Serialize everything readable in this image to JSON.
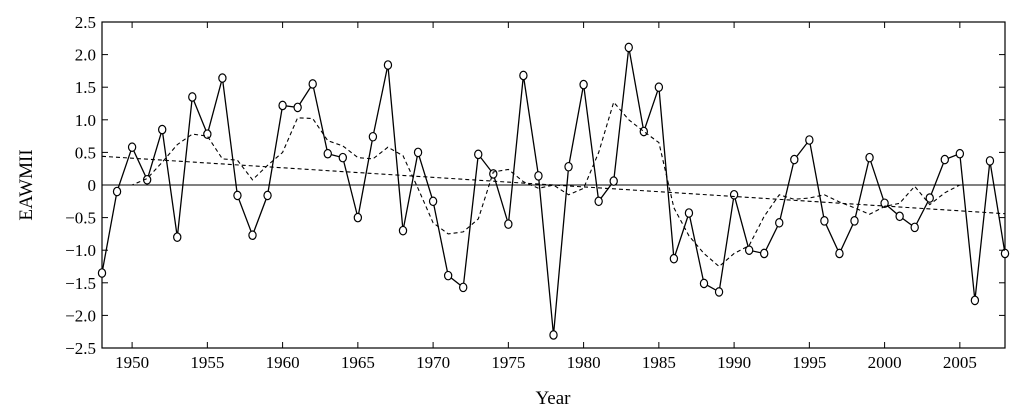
{
  "chart_data": {
    "type": "line",
    "title": "",
    "xlabel": "Year",
    "ylabel": "EAWMII",
    "xlim": [
      1948,
      2008
    ],
    "ylim": [
      -2.5,
      2.5
    ],
    "x_ticks": [
      1950,
      1955,
      1960,
      1965,
      1970,
      1975,
      1980,
      1985,
      1990,
      1995,
      2000,
      2005
    ],
    "x_tick_labels": [
      "1950",
      "1955",
      "1960",
      "1965",
      "1970",
      "1975",
      "1980",
      "1985",
      "1990",
      "1995",
      "2000",
      "2005"
    ],
    "y_ticks": [
      2.5,
      2.0,
      1.5,
      1.0,
      0.5,
      0,
      -0.5,
      -1.0,
      -1.5,
      -2.0,
      -2.5
    ],
    "y_tick_labels": [
      "2.5",
      "2.0",
      "1.5",
      "1.0",
      "0.5",
      "0",
      "−0.5",
      "−1.0",
      "−1.5",
      "−2.0",
      "−2.5"
    ],
    "zero_line": true,
    "grid": false,
    "legend": "none",
    "colors": {
      "line": "#000000",
      "background": "#ffffff"
    },
    "series": [
      {
        "style": "solid-with-open-circles",
        "x": [
          1948,
          1949,
          1950,
          1951,
          1952,
          1953,
          1954,
          1955,
          1956,
          1957,
          1958,
          1959,
          1960,
          1961,
          1962,
          1963,
          1964,
          1965,
          1966,
          1967,
          1968,
          1969,
          1970,
          1971,
          1972,
          1973,
          1974,
          1975,
          1976,
          1977,
          1978,
          1979,
          1980,
          1981,
          1982,
          1983,
          1984,
          1985,
          1986,
          1987,
          1988,
          1989,
          1990,
          1991,
          1992,
          1993,
          1994,
          1995,
          1996,
          1997,
          1998,
          1999,
          2000,
          2001,
          2002,
          2003,
          2004,
          2005,
          2006,
          2007,
          2008
        ],
        "values": [
          -1.35,
          -0.1,
          0.58,
          0.08,
          0.85,
          -0.8,
          1.35,
          0.78,
          1.64,
          -0.16,
          -0.77,
          -0.16,
          1.22,
          1.19,
          1.55,
          0.48,
          0.42,
          -0.5,
          0.74,
          1.84,
          -0.7,
          0.5,
          -0.25,
          -1.39,
          -1.57,
          0.47,
          0.17,
          -0.6,
          1.68,
          0.14,
          -2.3,
          0.28,
          1.54,
          -0.25,
          0.06,
          2.11,
          0.82,
          1.5,
          -1.13,
          -0.43,
          -1.51,
          -1.64,
          -0.15,
          -1.0,
          -1.05,
          -0.58,
          0.39,
          0.69,
          -0.55,
          -1.05,
          -0.55,
          0.42,
          -0.28,
          -0.48,
          -0.65,
          -0.2,
          0.39,
          0.48,
          -1.77,
          0.37,
          -1.05
        ]
      },
      {
        "style": "dashed-smoothed",
        "x": [
          1948,
          1949,
          1950,
          1951,
          1952,
          1953,
          1954,
          1955,
          1956,
          1957,
          1958,
          1959,
          1960,
          1961,
          1962,
          1963,
          1964,
          1965,
          1966,
          1967,
          1968,
          1969,
          1970,
          1971,
          1972,
          1973,
          1974,
          1975,
          1976,
          1977,
          1978,
          1979,
          1980,
          1981,
          1982,
          1983,
          1984,
          1985,
          1986,
          1987,
          1988,
          1989,
          1990,
          1991,
          1992,
          1993,
          1994,
          1995,
          1996,
          1997,
          1998,
          1999,
          2000,
          2001,
          2002,
          2003,
          2004,
          2005,
          2006,
          2007,
          2008
        ],
        "values": [
          0.0,
          0.0,
          0.0,
          0.1,
          0.35,
          0.62,
          0.78,
          0.75,
          0.4,
          0.38,
          0.08,
          0.3,
          0.5,
          1.03,
          1.02,
          0.68,
          0.6,
          0.42,
          0.4,
          0.58,
          0.45,
          -0.05,
          -0.58,
          -0.75,
          -0.72,
          -0.52,
          0.2,
          0.24,
          0.05,
          -0.05,
          0.0,
          -0.15,
          -0.05,
          0.5,
          1.27,
          1.0,
          0.82,
          0.65,
          -0.35,
          -0.78,
          -1.05,
          -1.25,
          -1.05,
          -0.93,
          -0.48,
          -0.15,
          -0.22,
          -0.2,
          -0.15,
          -0.26,
          -0.35,
          -0.45,
          -0.33,
          -0.28,
          -0.02,
          -0.3,
          -0.12,
          0.0,
          0.0,
          0.0,
          0.0
        ]
      },
      {
        "style": "dashed-linear-trend",
        "x": [
          1948,
          2008
        ],
        "values": [
          0.44,
          -0.44
        ]
      }
    ]
  }
}
